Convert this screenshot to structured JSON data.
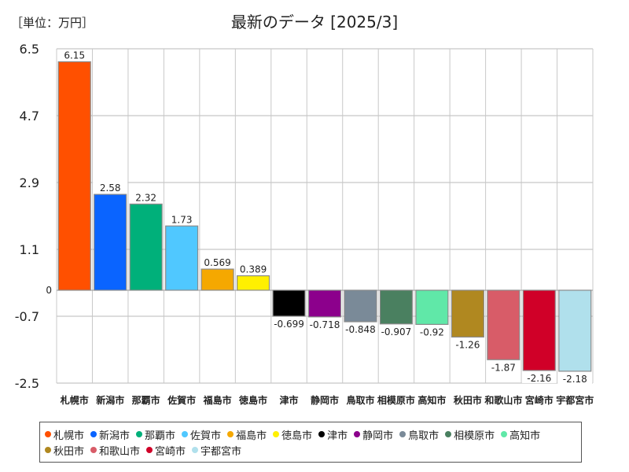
{
  "header": {
    "unit_label": "［単位：万円］",
    "title": "最新のデータ [2025/3]"
  },
  "chart_data": {
    "type": "bar",
    "title": "最新のデータ [2025/3]",
    "unit": "［単位：万円］",
    "ylim": [
      -2.5,
      6.5
    ],
    "yticks": [
      6.5,
      4.7,
      2.9,
      1.1,
      -0.7,
      -2.5
    ],
    "ytick_labels": [
      "6.5",
      "4.7",
      "2.9",
      "1.1",
      "-0.7",
      "-2.5"
    ],
    "zero_label": "0",
    "categories": [
      "札幌市",
      "新潟市",
      "那覇市",
      "佐賀市",
      "福島市",
      "徳島市",
      "津市",
      "静岡市",
      "鳥取市",
      "相模原市",
      "高知市",
      "秋田市",
      "和歌山市",
      "宮崎市",
      "宇都宮市"
    ],
    "values": [
      6.15,
      2.58,
      2.32,
      1.73,
      0.569,
      0.389,
      -0.699,
      -0.718,
      -0.848,
      -0.907,
      -0.92,
      -1.26,
      -1.87,
      -2.16,
      -2.18
    ],
    "value_labels": [
      "6.15",
      "2.58",
      "2.32",
      "1.73",
      "0.569",
      "0.389",
      "-0.699",
      "-0.718",
      "-0.848",
      "-0.907",
      "-0.92",
      "-1.26",
      "-1.87",
      "-2.16",
      "-2.18"
    ],
    "colors": [
      "#ff5000",
      "#0a64ff",
      "#00b07a",
      "#50c8ff",
      "#f5a800",
      "#fff000",
      "#000000",
      "#8c008c",
      "#7a8a98",
      "#4a8060",
      "#60e8a8",
      "#b08820",
      "#d85c68",
      "#d00028",
      "#b0e0ec"
    ],
    "legend_position": "bottom"
  }
}
